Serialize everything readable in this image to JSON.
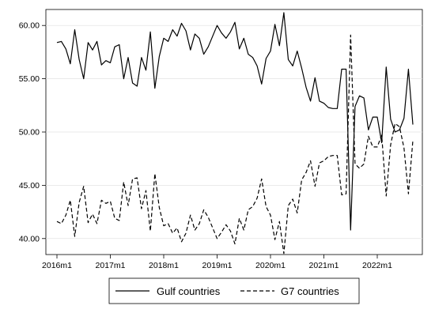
{
  "chart_data": {
    "type": "line",
    "x_tick_labels": [
      "2016m1",
      "2017m1",
      "2018m1",
      "2019m1",
      "2020m1",
      "2021m1",
      "2022m1"
    ],
    "x_start": "2016m1",
    "x_end": "2022m9",
    "ylim": [
      38.5,
      61.5
    ],
    "y_ticks": [
      "40.00",
      "45.00",
      "50.00",
      "55.00",
      "60.00"
    ],
    "grid": true,
    "legend_position": "bottom",
    "series": [
      {
        "name": "Gulf countries",
        "style": "solid",
        "color": "#000000",
        "values": [
          58.4,
          58.5,
          57.8,
          56.4,
          59.6,
          56.8,
          55.0,
          58.4,
          57.7,
          58.5,
          56.3,
          56.7,
          56.5,
          58.0,
          58.2,
          55.0,
          57.0,
          54.6,
          54.3,
          57.0,
          55.8,
          59.4,
          54.1,
          57.1,
          58.8,
          58.5,
          59.6,
          59.0,
          60.2,
          59.5,
          57.7,
          59.2,
          58.8,
          57.3,
          58.0,
          59.0,
          60.0,
          59.3,
          58.8,
          59.4,
          60.3,
          57.8,
          58.8,
          57.3,
          57.0,
          56.2,
          54.5,
          56.9,
          57.6,
          60.1,
          58.1,
          61.2,
          56.8,
          56.2,
          57.6,
          56.0,
          54.2,
          52.9,
          55.1,
          52.9,
          52.7,
          52.3,
          52.2,
          52.2,
          55.9,
          55.9,
          40.8,
          52.4,
          53.4,
          53.2,
          50.2,
          51.4,
          51.4,
          49.0,
          56.1,
          51.2,
          50.0,
          50.2,
          51.3,
          55.9,
          50.7
        ],
        "note": "monthly values from 2016m1 to 2022m9"
      },
      {
        "name": "G7 countries",
        "style": "dashed",
        "color": "#000000",
        "values": [
          41.6,
          41.4,
          42.2,
          43.6,
          40.2,
          43.4,
          44.9,
          41.5,
          42.3,
          41.4,
          43.6,
          43.3,
          43.5,
          41.9,
          41.7,
          45.3,
          43.1,
          45.6,
          45.7,
          42.8,
          44.5,
          40.7,
          46.1,
          42.9,
          41.2,
          41.4,
          40.5,
          41.0,
          39.7,
          40.5,
          42.2,
          40.8,
          41.4,
          42.7,
          42.0,
          41.0,
          40.0,
          40.6,
          41.3,
          40.7,
          39.5,
          41.9,
          40.8,
          42.7,
          43.0,
          43.8,
          45.6,
          43.0,
          42.2,
          39.9,
          41.6,
          38.6,
          43.1,
          43.7,
          42.4,
          45.5,
          46.2,
          47.3,
          44.9,
          47.1,
          47.3,
          47.7,
          47.8,
          47.8,
          44.1,
          44.2,
          59.1,
          47.0,
          46.6,
          47.0,
          49.6,
          48.6,
          48.6,
          49.7,
          44.0,
          48.8,
          50.8,
          50.5,
          48.5,
          44.2,
          49.2
        ],
        "note": "monthly values from 2016m1 to 2022m9"
      }
    ]
  },
  "legend": {
    "items": [
      {
        "label": "Gulf countries",
        "style": "solid"
      },
      {
        "label": "G7 countries",
        "style": "dashed"
      }
    ]
  }
}
